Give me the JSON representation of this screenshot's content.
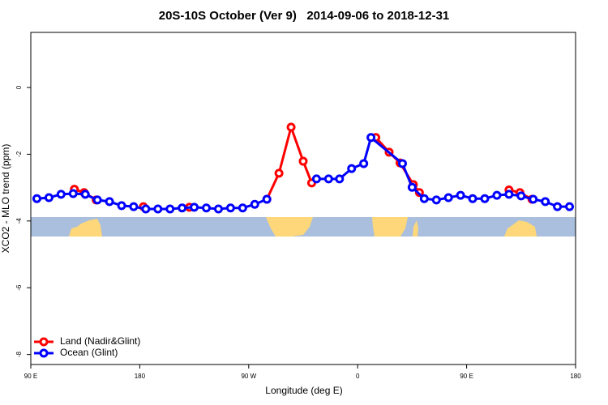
{
  "chart_data": {
    "type": "line",
    "title": "20S-10S October (Ver 9)   2014-09-06 to 2018-12-31",
    "x_label": "Longitude (deg E)",
    "y_label": "XCO2 - MLO trend (ppm)",
    "xlim": [
      90,
      540
    ],
    "ylim": [
      -8.3,
      1.65
    ],
    "xticks": [
      {
        "value": 90,
        "label": "90 E"
      },
      {
        "value": 180,
        "label": "180"
      },
      {
        "value": 270,
        "label": "90 W"
      },
      {
        "value": 360,
        "label": "0"
      },
      {
        "value": 450,
        "label": "90 E"
      },
      {
        "value": 540,
        "label": "180"
      }
    ],
    "yticks": [
      0,
      -2,
      -4,
      -6,
      -8
    ],
    "legend": "bottom-left",
    "series": [
      {
        "name": "Land (Nadir&Glint)",
        "color": "#ff0000",
        "x": [
          126,
          134,
          144,
          160,
          183,
          200,
          221,
          250,
          285,
          295,
          305,
          315,
          322,
          350,
          375,
          386,
          395,
          406,
          411,
          450,
          485,
          494,
          504
        ],
        "values": [
          -3.05,
          -3.15,
          -3.37,
          null,
          -3.57,
          null,
          -3.59,
          null,
          -3.35,
          -2.57,
          -1.19,
          -2.21,
          -2.86,
          null,
          -1.5,
          -1.94,
          -2.26,
          -2.91,
          -3.15,
          null,
          -3.07,
          -3.15,
          -3.35
        ]
      },
      {
        "name": "Ocean (Glint)",
        "color": "#0000ff",
        "x": [
          95,
          105,
          115,
          125,
          135,
          145,
          155,
          165,
          175,
          185,
          195,
          205,
          215,
          225,
          235,
          245,
          255,
          265,
          275,
          285,
          305,
          326,
          336,
          345,
          355,
          365,
          371,
          397,
          405,
          415,
          425,
          435,
          445,
          455,
          465,
          475,
          485,
          495,
          505,
          515,
          525,
          535
        ],
        "values": [
          -3.33,
          -3.3,
          -3.2,
          -3.18,
          -3.2,
          -3.37,
          -3.42,
          -3.54,
          -3.57,
          -3.64,
          -3.64,
          -3.64,
          -3.61,
          -3.59,
          -3.61,
          -3.64,
          -3.61,
          -3.61,
          -3.5,
          -3.35,
          null,
          -2.74,
          -2.74,
          -2.74,
          -2.43,
          -2.28,
          -1.5,
          -2.28,
          -2.99,
          -3.33,
          -3.37,
          -3.3,
          -3.23,
          -3.33,
          -3.33,
          -3.23,
          -3.2,
          -3.25,
          -3.35,
          -3.42,
          -3.57,
          -3.57
        ]
      }
    ]
  }
}
